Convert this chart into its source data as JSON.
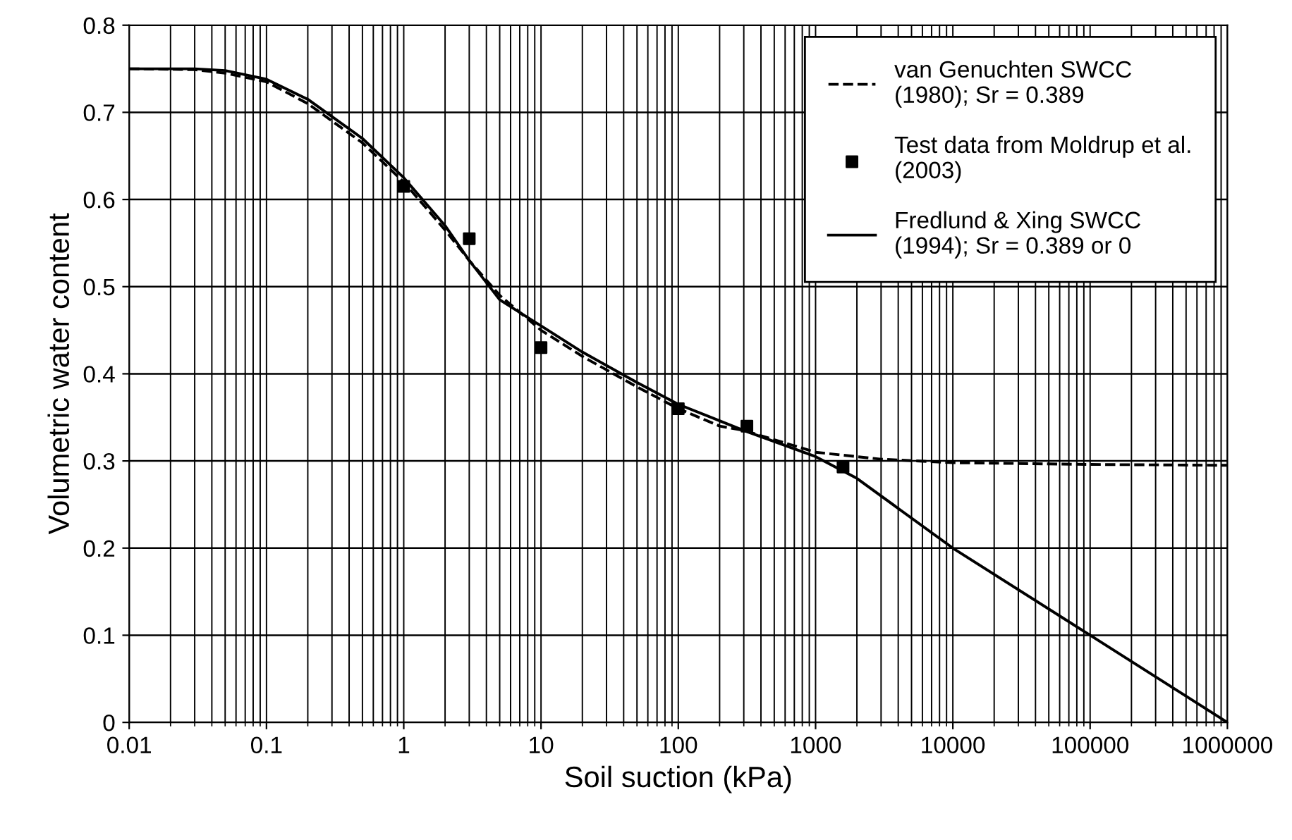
{
  "chart_data": {
    "type": "line",
    "xlabel": "Soil suction (kPa)",
    "ylabel": "Volumetric water content",
    "log": "x",
    "xlim": [
      0.01,
      1000000
    ],
    "xticks": [
      0.01,
      0.1,
      1,
      10,
      100,
      1000,
      10000,
      100000,
      1000000
    ],
    "ylim": [
      0,
      0.8
    ],
    "yticks": [
      0,
      0.1,
      0.2,
      0.3,
      0.4,
      0.5,
      0.6,
      0.7,
      0.8
    ],
    "grid": true,
    "legend": "top right",
    "series": [
      {
        "name": "van Genuchten SWCC\n(1980); Sr = 0.389",
        "line_style": "dashed",
        "color": "#000000",
        "x": [
          0.01,
          0.03,
          0.05,
          0.1,
          0.2,
          0.5,
          1,
          2,
          3,
          5,
          10,
          20,
          50,
          100,
          200,
          300,
          1000,
          3000,
          10000,
          100000,
          1000000
        ],
        "values": [
          0.75,
          0.749,
          0.745,
          0.735,
          0.71,
          0.665,
          0.62,
          0.565,
          0.53,
          0.49,
          0.45,
          0.42,
          0.385,
          0.36,
          0.34,
          0.335,
          0.31,
          0.302,
          0.298,
          0.296,
          0.295
        ]
      },
      {
        "name": "Test data from Moldrup et al.\n(2003)",
        "type": "scatter",
        "marker": "square",
        "color": "#000000",
        "x": [
          1,
          3,
          10,
          100,
          316,
          1585
        ],
        "values": [
          0.615,
          0.555,
          0.43,
          0.36,
          0.34,
          0.293
        ]
      },
      {
        "name": "Fredlund & Xing SWCC\n(1994); Sr = 0.389 or 0",
        "line_style": "solid",
        "color": "#000000",
        "x": [
          0.01,
          0.03,
          0.05,
          0.1,
          0.2,
          0.5,
          1,
          2,
          3,
          5,
          10,
          20,
          50,
          100,
          300,
          1000,
          2000,
          10000,
          100000,
          1000000
        ],
        "values": [
          0.75,
          0.75,
          0.748,
          0.738,
          0.715,
          0.67,
          0.625,
          0.57,
          0.53,
          0.485,
          0.455,
          0.425,
          0.39,
          0.365,
          0.335,
          0.305,
          0.28,
          0.2,
          0.1,
          0.0
        ]
      }
    ]
  }
}
